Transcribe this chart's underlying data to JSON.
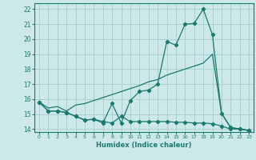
{
  "xlabel": "Humidex (Indice chaleur)",
  "bg_color": "#cce8e8",
  "grid_color": "#aad0d0",
  "line_color": "#1a7a6e",
  "xlim": [
    -0.5,
    23.5
  ],
  "ylim": [
    13.8,
    22.4
  ],
  "xticks": [
    0,
    1,
    2,
    3,
    4,
    5,
    6,
    7,
    8,
    9,
    10,
    11,
    12,
    13,
    14,
    15,
    16,
    17,
    18,
    19,
    20,
    21,
    22,
    23
  ],
  "yticks": [
    14,
    15,
    16,
    17,
    18,
    19,
    20,
    21,
    22
  ],
  "line1_x": [
    0,
    1,
    2,
    3,
    4,
    5,
    6,
    7,
    8,
    9,
    10,
    11,
    12,
    13,
    14,
    15,
    16,
    17,
    18,
    19,
    20,
    21,
    22,
    23
  ],
  "line1_y": [
    15.8,
    15.2,
    15.2,
    15.1,
    14.85,
    14.6,
    14.65,
    14.4,
    15.7,
    14.4,
    15.9,
    16.5,
    16.6,
    17.0,
    19.85,
    19.6,
    21.0,
    21.05,
    22.0,
    20.3,
    15.05,
    14.1,
    14.0,
    13.9
  ],
  "line2_x": [
    0,
    1,
    2,
    3,
    4,
    5,
    6,
    7,
    8,
    9,
    10,
    11,
    12,
    13,
    14,
    15,
    16,
    17,
    18,
    19,
    20,
    21,
    22,
    23
  ],
  "line2_y": [
    15.8,
    15.4,
    15.5,
    15.2,
    15.6,
    15.7,
    15.9,
    16.1,
    16.3,
    16.5,
    16.7,
    16.9,
    17.15,
    17.3,
    17.6,
    17.8,
    18.0,
    18.2,
    18.4,
    19.0,
    15.05,
    14.1,
    14.0,
    13.9
  ],
  "line3_x": [
    0,
    1,
    2,
    3,
    4,
    5,
    6,
    7,
    8,
    9,
    10,
    11,
    12,
    13,
    14,
    15,
    16,
    17,
    18,
    19,
    20,
    21,
    22,
    23
  ],
  "line3_y": [
    15.8,
    15.2,
    15.2,
    15.1,
    14.85,
    14.6,
    14.65,
    14.5,
    14.4,
    14.85,
    14.5,
    14.5,
    14.5,
    14.5,
    14.5,
    14.45,
    14.45,
    14.4,
    14.4,
    14.35,
    14.2,
    14.0,
    14.0,
    13.9
  ]
}
